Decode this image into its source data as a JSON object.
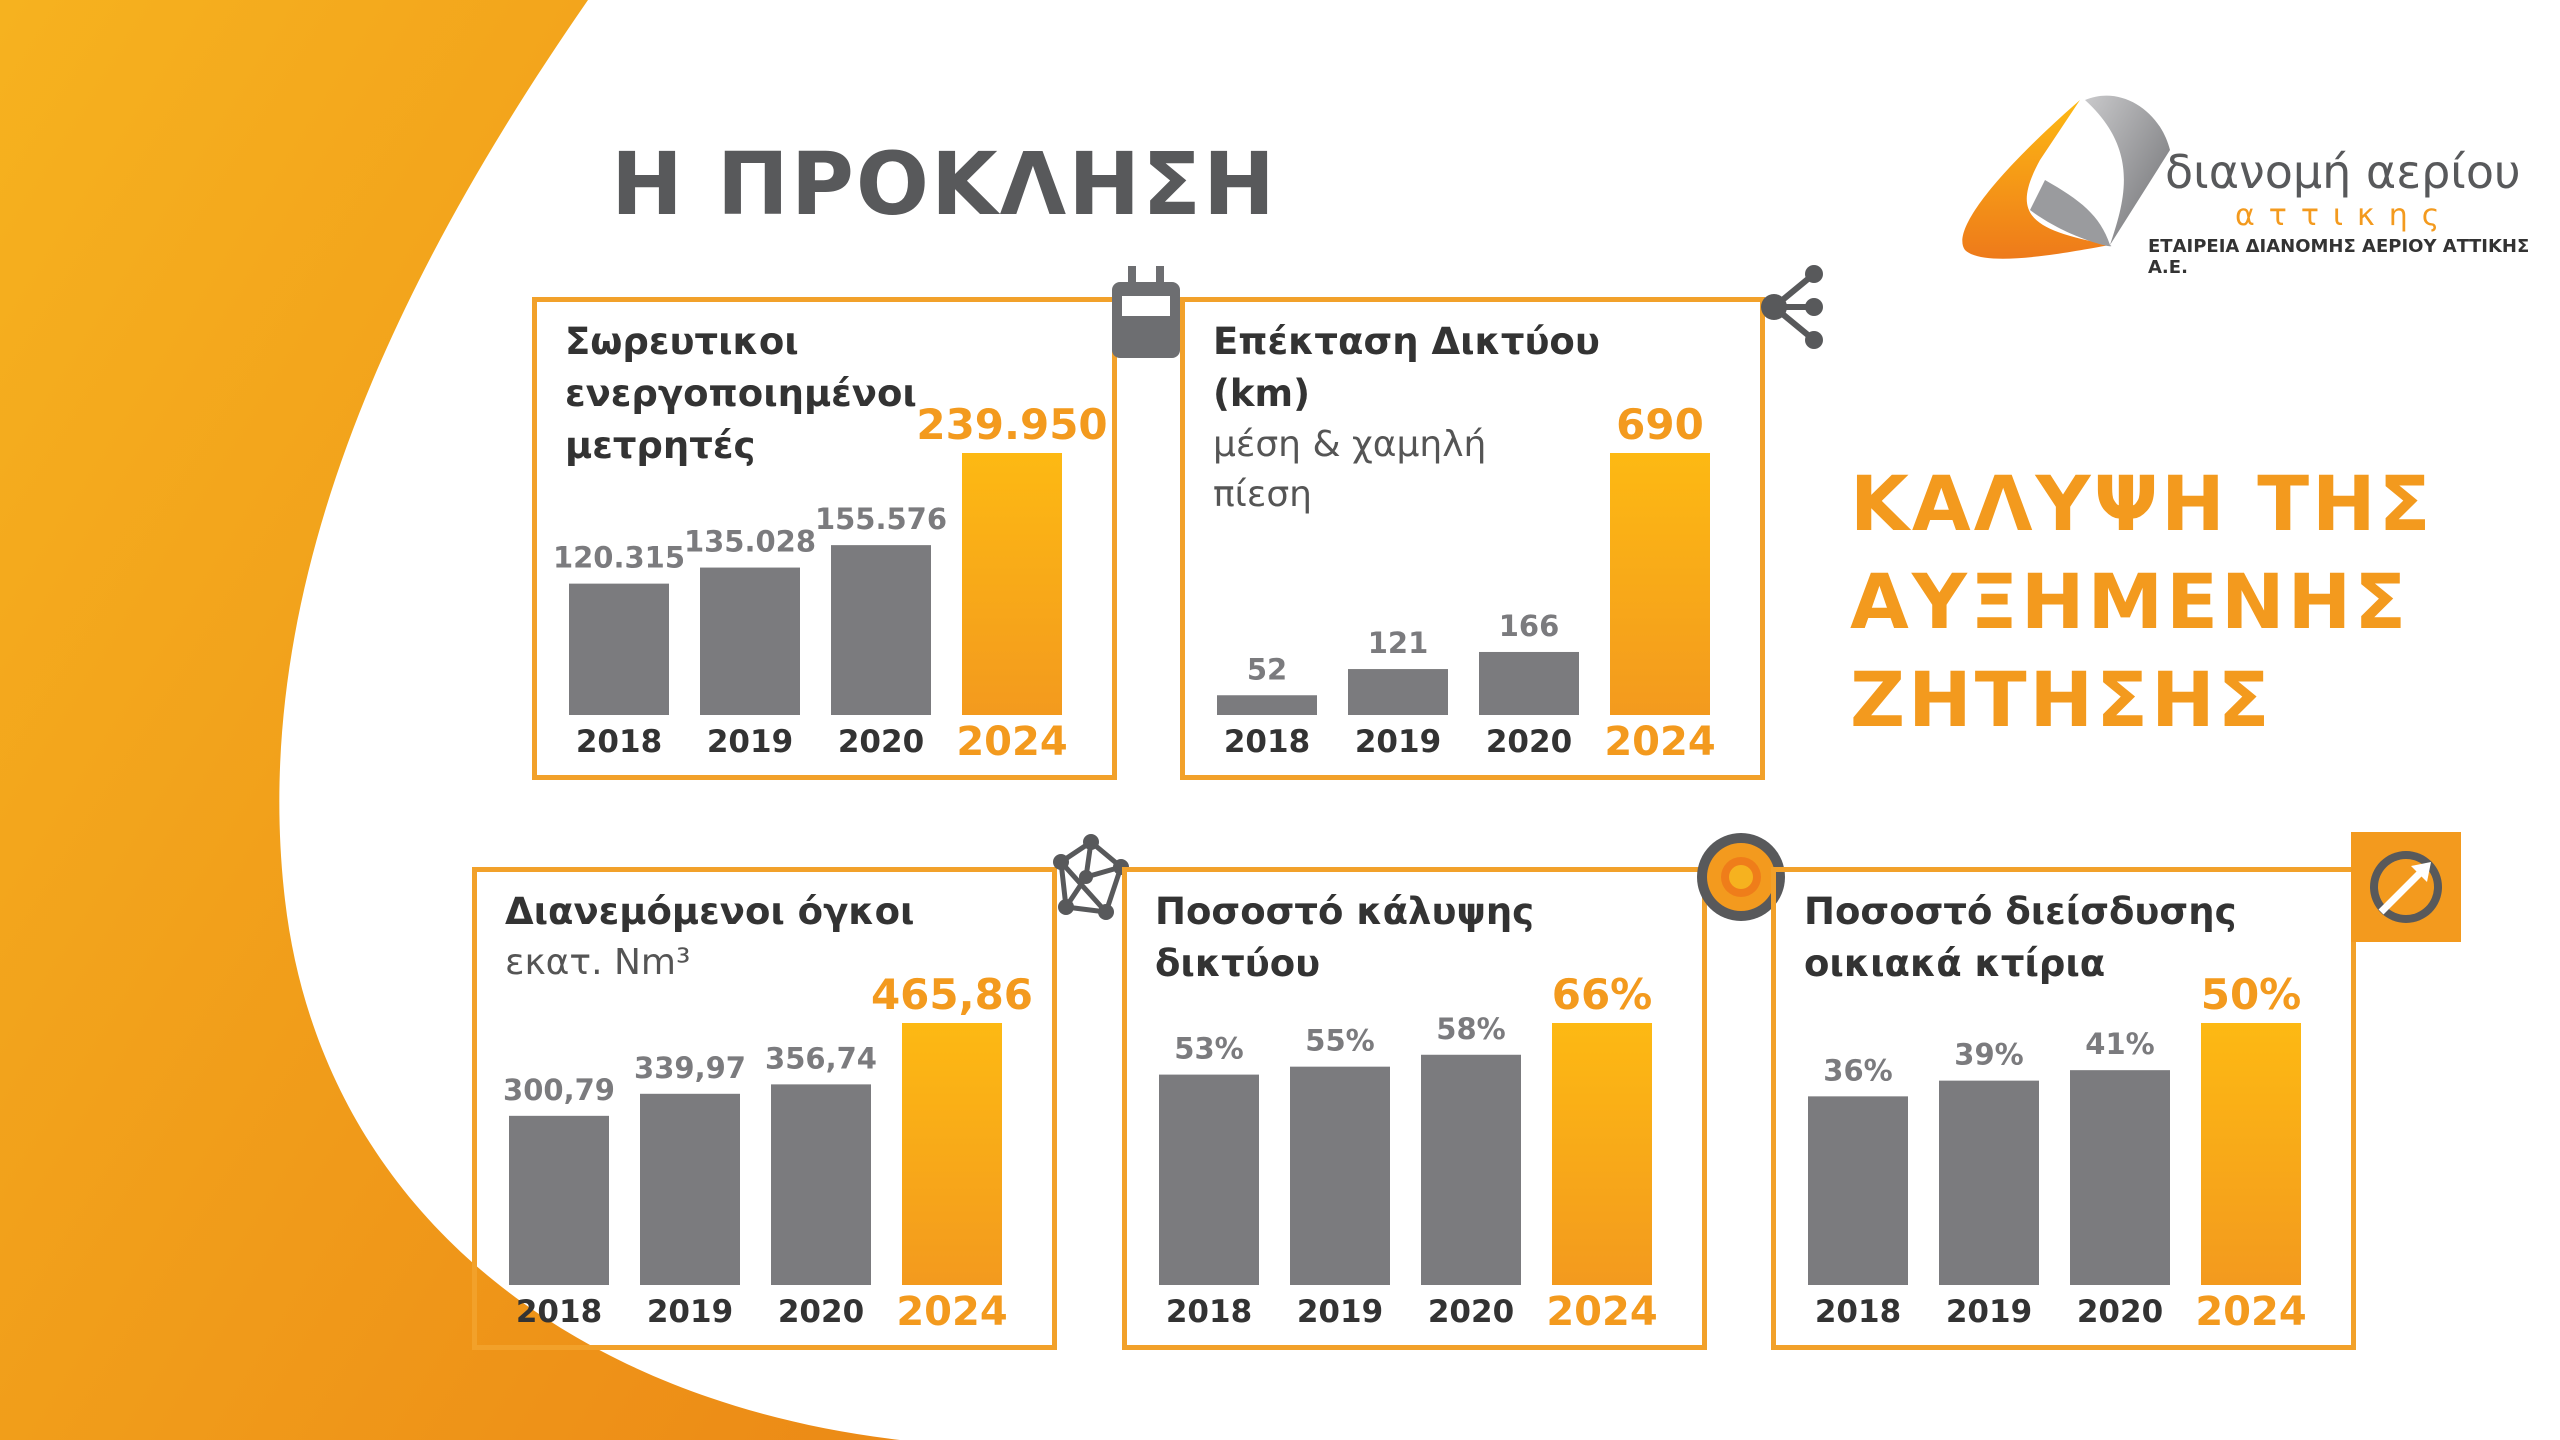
{
  "header": {
    "title": "Η ΠΡΟΚΛΗΣΗ",
    "logo_name": "διανομή αερίου",
    "logo_sub": "αττικης",
    "logo_company": "ΕΤΑΙΡΕΙΑ ΔΙΑΝΟΜΗΣ ΑΕΡΙΟΥ ΑΤΤΙΚΗΣ Α.Ε."
  },
  "headline": [
    "ΚΑΛΥΨΗ ΤΗΣ",
    "ΑΥΞΗΜΕΝΗΣ",
    "ΖΗΤΗΣΗΣ"
  ],
  "chart_data": [
    {
      "type": "bar",
      "title": [
        "Σωρευτικοι",
        "ενεργοποιημένοι",
        "μετρητές"
      ],
      "categories": [
        "2018",
        "2019",
        "2020",
        "2024"
      ],
      "values": [
        120315,
        135028,
        155576,
        239950
      ],
      "value_labels": [
        "120.315",
        "135.028",
        "155.576",
        "239.950"
      ],
      "color": "#7b7b7e",
      "highlight_color": "#f39a1e"
    },
    {
      "type": "bar",
      "title": [
        "Επέκταση Δικτύου",
        "(km)"
      ],
      "subtitle": [
        "μέση & χαμηλή",
        "πίεση"
      ],
      "categories": [
        "2018",
        "2019",
        "2020",
        "2024"
      ],
      "values": [
        52,
        121,
        166,
        690
      ],
      "color": "#7b7b7e",
      "highlight_color": "#f39a1e"
    },
    {
      "type": "bar",
      "title": [
        "Διανεμόμενοι όγκοι"
      ],
      "subtitle": [
        "εκατ. Nm³"
      ],
      "categories": [
        "2018",
        "2019",
        "2020",
        "2024"
      ],
      "values": [
        300.79,
        339.97,
        356.74,
        465.86
      ],
      "value_labels": [
        "300,79",
        "339,97",
        "356,74",
        "465,86"
      ],
      "color": "#7b7b7e",
      "highlight_color": "#f39a1e"
    },
    {
      "type": "bar",
      "title": [
        "Ποσοστό κάλυψης",
        "δικτύου"
      ],
      "categories": [
        "2018",
        "2019",
        "2020",
        "2024"
      ],
      "values": [
        53,
        55,
        58,
        66
      ],
      "value_labels": [
        "53%",
        "55%",
        "58%",
        "66%"
      ],
      "color": "#7b7b7e",
      "highlight_color": "#f39a1e"
    },
    {
      "type": "bar",
      "title": [
        "Ποσοστό διείσδυσης",
        "οικιακά κτίρια"
      ],
      "categories": [
        "2018",
        "2019",
        "2020",
        "2024"
      ],
      "values": [
        36,
        39,
        41,
        50
      ],
      "value_labels": [
        "36%",
        "39%",
        "41%",
        "50%"
      ],
      "color": "#7b7b7e",
      "highlight_color": "#f39a1e"
    }
  ]
}
